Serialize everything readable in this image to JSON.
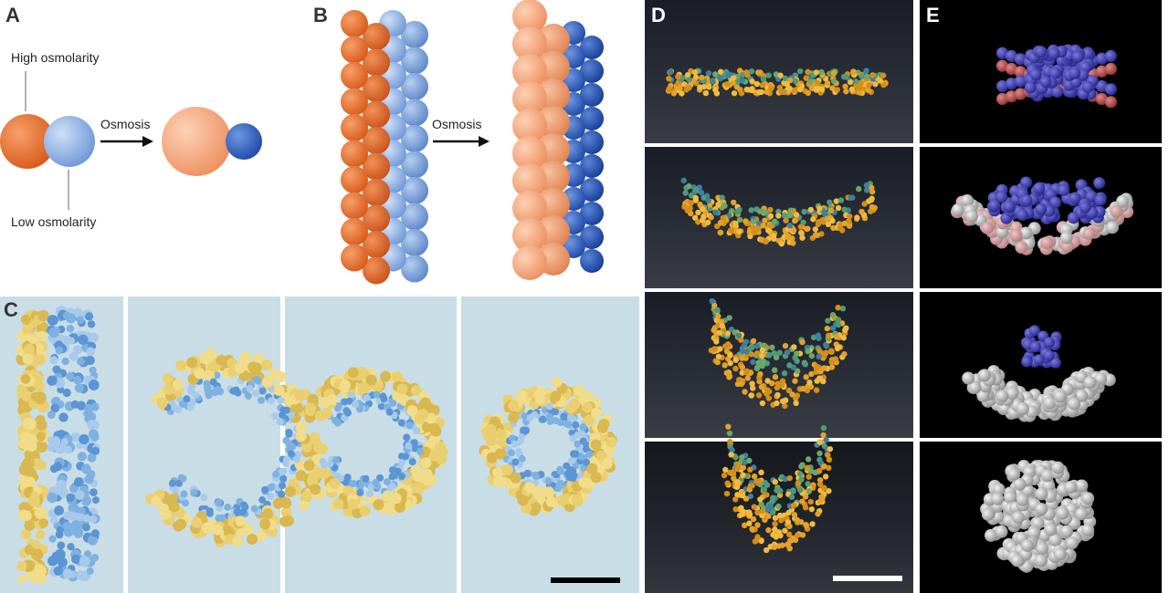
{
  "figure": {
    "panels": {
      "a": {
        "letter": "A",
        "high_label": "High osmolarity",
        "low_label": "Low osmolarity",
        "arrow_label": "Osmosis"
      },
      "b": {
        "letter": "B",
        "arrow_label": "Osmosis"
      },
      "c": {
        "letter": "C",
        "frames": 4
      },
      "d": {
        "letter": "D",
        "frames": 4
      },
      "e": {
        "letter": "E",
        "frames": 4
      }
    },
    "colors": {
      "orange": "#e8702e",
      "light_orange": "#f5a47a",
      "light_blue": "#8fb3e6",
      "dark_blue": "#2e5fb8",
      "yellow_droplet": "#e3c86a",
      "blue_droplet": "#6a9fd6",
      "sim_blue": "#3a3aa8",
      "sim_red": "#b04444",
      "sim_grey": "#c8c8c8"
    }
  }
}
